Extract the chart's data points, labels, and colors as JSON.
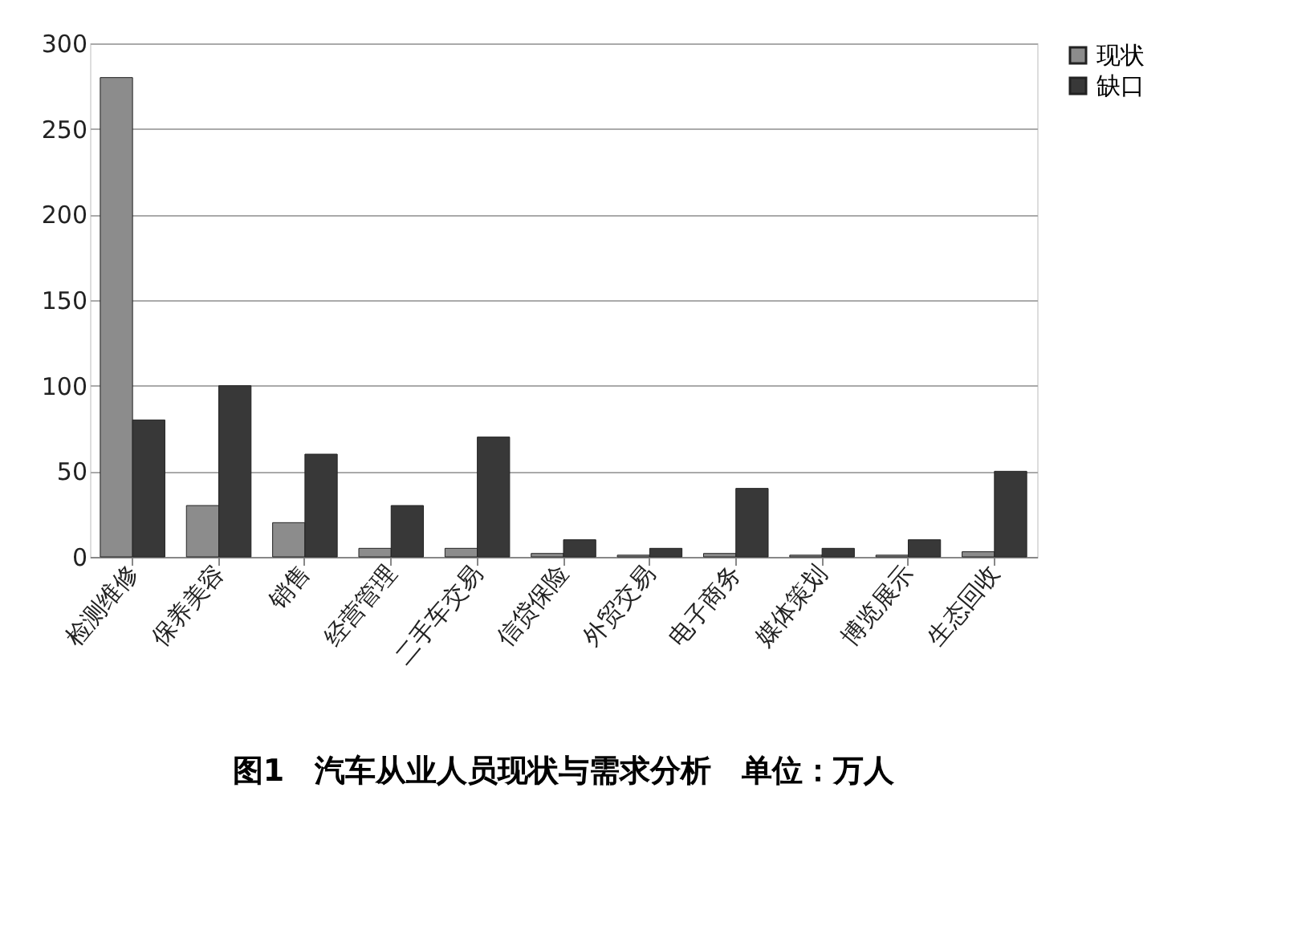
{
  "chart_data": {
    "type": "bar",
    "categories": [
      "检测维修",
      "保养美容",
      "销售",
      "经营管理",
      "二手车交易",
      "信贷保险",
      "外贸交易",
      "电子商务",
      "媒体策划",
      "博览展示",
      "生态回收"
    ],
    "series": [
      {
        "name": "现状",
        "color": "#8c8c8c",
        "values": [
          280,
          30,
          20,
          5,
          5,
          2,
          1,
          2,
          1,
          1,
          3
        ]
      },
      {
        "name": "缺口",
        "color": "#383838",
        "values": [
          80,
          100,
          60,
          30,
          70,
          10,
          5,
          40,
          5,
          10,
          50
        ]
      }
    ],
    "ylim": [
      0,
      300
    ],
    "yticks": [
      0,
      50,
      100,
      150,
      200,
      250,
      300
    ],
    "grid": "y",
    "legend": "right",
    "annotations": [
      "图1　汽车从业人员现状与需求分析　单位：万人"
    ]
  }
}
